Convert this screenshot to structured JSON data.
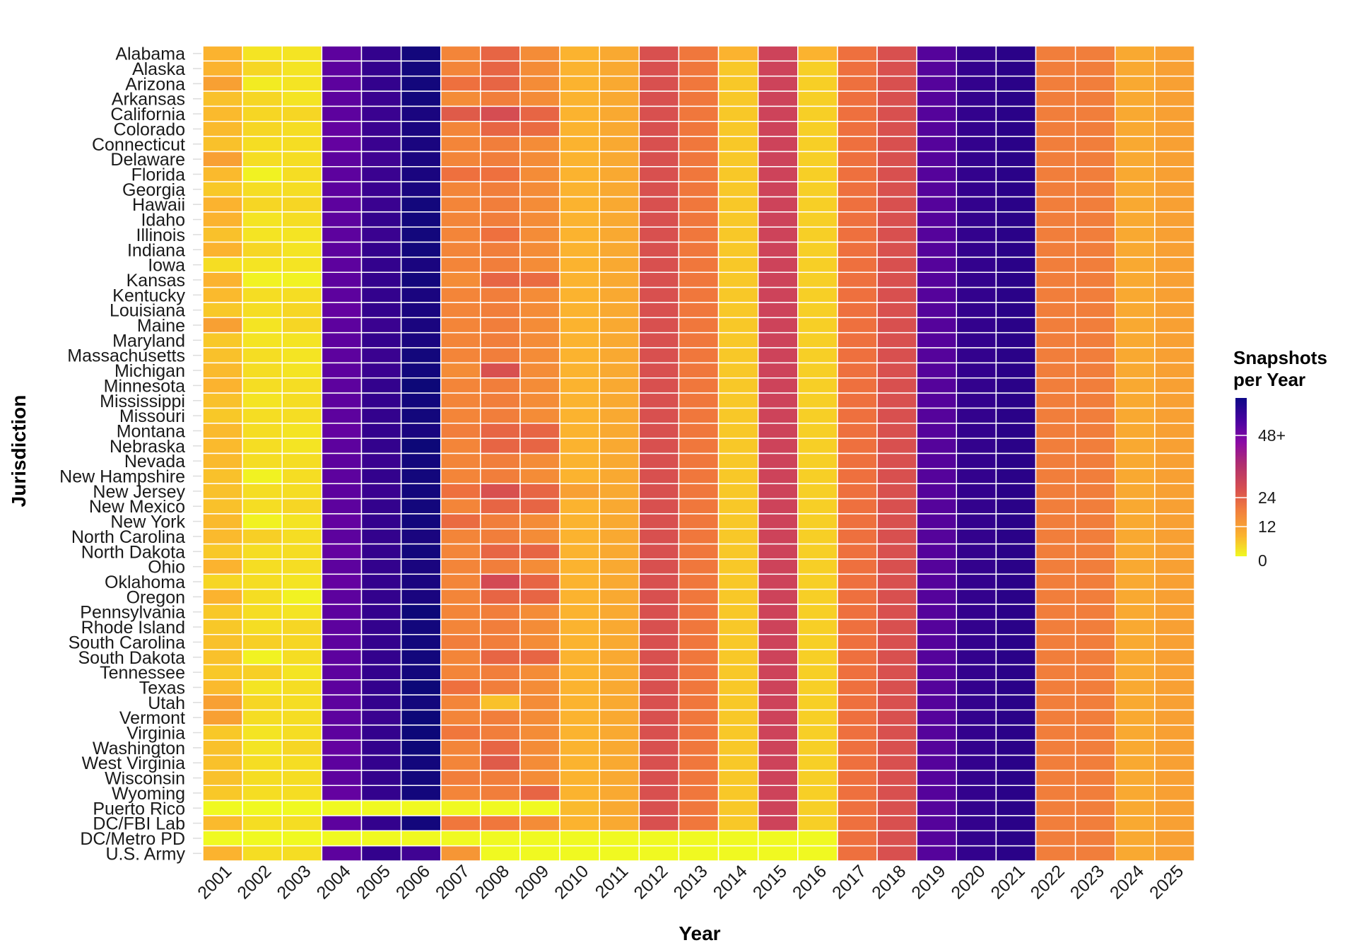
{
  "chart_data": {
    "type": "heatmap",
    "title": "",
    "xlabel": "Year",
    "ylabel": "Jurisdiction",
    "x": [
      "2001",
      "2002",
      "2003",
      "2004",
      "2005",
      "2006",
      "2007",
      "2008",
      "2009",
      "2010",
      "2011",
      "2012",
      "2013",
      "2014",
      "2015",
      "2016",
      "2017",
      "2018",
      "2019",
      "2020",
      "2021",
      "2022",
      "2023",
      "2024",
      "2025"
    ],
    "y": [
      "Alabama",
      "Alaska",
      "Arizona",
      "Arkansas",
      "California",
      "Colorado",
      "Connecticut",
      "Delaware",
      "Florida",
      "Georgia",
      "Hawaii",
      "Idaho",
      "Illinois",
      "Indiana",
      "Iowa",
      "Kansas",
      "Kentucky",
      "Louisiana",
      "Maine",
      "Maryland",
      "Massachusetts",
      "Michigan",
      "Minnesota",
      "Mississippi",
      "Missouri",
      "Montana",
      "Nebraska",
      "Nevada",
      "New Hampshire",
      "New Jersey",
      "New Mexico",
      "New York",
      "North Carolina",
      "North Dakota",
      "Ohio",
      "Oklahoma",
      "Oregon",
      "Pennsylvania",
      "Rhode Island",
      "South Carolina",
      "South Dakota",
      "Tennessee",
      "Texas",
      "Utah",
      "Vermont",
      "Virginia",
      "Washington",
      "West Virginia",
      "Wisconsin",
      "Wyoming",
      "Puerto Rico",
      "DC/FBI Lab",
      "DC/Metro PD",
      "U.S. Army"
    ],
    "base_profile": [
      9,
      3,
      3,
      50,
      62,
      72,
      15,
      18,
      14,
      10,
      11,
      24,
      16,
      10,
      28,
      6,
      18,
      24,
      52,
      62,
      65,
      16,
      16,
      11,
      12
    ],
    "values": [
      [
        10,
        3,
        3,
        50,
        62,
        72,
        15,
        20,
        14,
        10,
        11,
        24,
        17,
        10,
        28,
        10,
        18,
        24,
        52,
        62,
        65,
        16,
        16,
        11,
        12
      ],
      [
        10,
        5,
        3,
        50,
        62,
        72,
        15,
        20,
        14,
        10,
        11,
        24,
        17,
        7,
        28,
        6,
        18,
        24,
        52,
        62,
        65,
        16,
        16,
        11,
        12
      ],
      [
        12,
        2,
        3,
        50,
        62,
        72,
        18,
        20,
        14,
        10,
        11,
        24,
        17,
        7,
        28,
        6,
        18,
        24,
        52,
        62,
        65,
        16,
        16,
        11,
        12
      ],
      [
        8,
        5,
        3,
        50,
        60,
        72,
        14,
        16,
        14,
        10,
        11,
        24,
        17,
        7,
        28,
        6,
        18,
        24,
        52,
        62,
        65,
        16,
        16,
        11,
        12
      ],
      [
        9,
        5,
        5,
        50,
        60,
        70,
        22,
        25,
        20,
        10,
        11,
        24,
        17,
        7,
        28,
        6,
        18,
        24,
        52,
        62,
        65,
        16,
        16,
        11,
        12
      ],
      [
        9,
        5,
        4,
        48,
        60,
        70,
        15,
        20,
        19,
        10,
        11,
        24,
        17,
        7,
        28,
        6,
        18,
        24,
        52,
        62,
        65,
        16,
        16,
        11,
        12
      ],
      [
        8,
        4,
        4,
        48,
        60,
        70,
        15,
        16,
        14,
        10,
        11,
        24,
        17,
        7,
        28,
        6,
        18,
        24,
        52,
        62,
        65,
        16,
        16,
        11,
        12
      ],
      [
        12,
        4,
        4,
        50,
        58,
        70,
        15,
        16,
        14,
        10,
        11,
        24,
        17,
        7,
        28,
        6,
        18,
        24,
        52,
        62,
        65,
        16,
        16,
        11,
        12
      ],
      [
        9,
        1,
        4,
        50,
        60,
        70,
        18,
        18,
        14,
        10,
        11,
        24,
        17,
        7,
        28,
        6,
        18,
        24,
        52,
        62,
        65,
        16,
        16,
        11,
        12
      ],
      [
        7,
        4,
        4,
        50,
        60,
        70,
        15,
        16,
        14,
        10,
        11,
        24,
        17,
        7,
        28,
        6,
        18,
        24,
        52,
        62,
        65,
        16,
        16,
        11,
        12
      ],
      [
        10,
        5,
        5,
        50,
        60,
        72,
        15,
        16,
        14,
        10,
        11,
        24,
        17,
        7,
        28,
        6,
        18,
        24,
        52,
        62,
        65,
        16,
        16,
        11,
        12
      ],
      [
        10,
        3,
        4,
        50,
        62,
        72,
        15,
        16,
        14,
        10,
        11,
        24,
        17,
        7,
        28,
        6,
        18,
        24,
        52,
        62,
        65,
        16,
        16,
        11,
        12
      ],
      [
        8,
        3,
        3,
        50,
        60,
        72,
        15,
        18,
        14,
        10,
        11,
        24,
        17,
        7,
        28,
        6,
        18,
        24,
        52,
        62,
        65,
        16,
        16,
        11,
        12
      ],
      [
        10,
        5,
        3,
        50,
        62,
        72,
        15,
        16,
        14,
        10,
        11,
        24,
        17,
        7,
        28,
        6,
        18,
        24,
        52,
        62,
        65,
        16,
        16,
        11,
        12
      ],
      [
        4,
        3,
        3,
        50,
        62,
        70,
        15,
        16,
        14,
        10,
        11,
        24,
        17,
        7,
        28,
        6,
        18,
        24,
        52,
        62,
        65,
        16,
        16,
        11,
        12
      ],
      [
        10,
        1,
        1,
        50,
        62,
        72,
        14,
        20,
        19,
        10,
        11,
        24,
        17,
        7,
        28,
        6,
        18,
        24,
        52,
        62,
        65,
        16,
        16,
        11,
        12
      ],
      [
        9,
        4,
        4,
        50,
        62,
        70,
        15,
        16,
        14,
        10,
        11,
        24,
        17,
        7,
        28,
        6,
        18,
        24,
        52,
        62,
        65,
        16,
        16,
        11,
        12
      ],
      [
        7,
        4,
        5,
        48,
        62,
        70,
        15,
        16,
        14,
        10,
        11,
        24,
        17,
        7,
        28,
        6,
        18,
        24,
        52,
        62,
        65,
        16,
        16,
        11,
        12
      ],
      [
        12,
        3,
        5,
        50,
        60,
        70,
        15,
        16,
        14,
        10,
        11,
        24,
        17,
        7,
        28,
        6,
        18,
        24,
        52,
        62,
        65,
        16,
        16,
        11,
        12
      ],
      [
        7,
        3,
        3,
        50,
        62,
        70,
        15,
        16,
        14,
        10,
        11,
        24,
        17,
        7,
        28,
        6,
        18,
        24,
        52,
        62,
        65,
        16,
        16,
        11,
        12
      ],
      [
        8,
        4,
        3,
        50,
        60,
        72,
        15,
        16,
        14,
        10,
        11,
        24,
        17,
        7,
        28,
        6,
        18,
        24,
        52,
        62,
        65,
        16,
        16,
        11,
        12
      ],
      [
        9,
        4,
        3,
        50,
        60,
        72,
        14,
        24,
        14,
        10,
        11,
        24,
        17,
        7,
        28,
        6,
        18,
        24,
        52,
        62,
        65,
        16,
        16,
        11,
        12
      ],
      [
        10,
        4,
        4,
        50,
        62,
        74,
        15,
        16,
        14,
        10,
        11,
        24,
        17,
        7,
        28,
        6,
        18,
        24,
        52,
        62,
        65,
        16,
        16,
        11,
        12
      ],
      [
        8,
        3,
        4,
        50,
        62,
        72,
        15,
        16,
        14,
        10,
        11,
        24,
        17,
        7,
        28,
        6,
        18,
        24,
        52,
        62,
        65,
        16,
        16,
        11,
        12
      ],
      [
        7,
        4,
        4,
        50,
        62,
        72,
        15,
        16,
        14,
        10,
        11,
        24,
        17,
        7,
        28,
        6,
        18,
        24,
        52,
        62,
        65,
        16,
        16,
        11,
        12
      ],
      [
        9,
        4,
        3,
        48,
        62,
        70,
        16,
        20,
        20,
        10,
        11,
        24,
        17,
        7,
        28,
        6,
        18,
        24,
        52,
        62,
        65,
        16,
        16,
        11,
        12
      ],
      [
        9,
        4,
        3,
        50,
        62,
        74,
        15,
        20,
        20,
        10,
        11,
        24,
        17,
        7,
        28,
        6,
        18,
        24,
        52,
        62,
        65,
        16,
        16,
        11,
        12
      ],
      [
        9,
        4,
        4,
        50,
        60,
        72,
        15,
        16,
        14,
        10,
        11,
        24,
        17,
        7,
        28,
        6,
        18,
        24,
        52,
        62,
        65,
        16,
        16,
        11,
        12
      ],
      [
        8,
        1,
        4,
        50,
        62,
        72,
        15,
        16,
        14,
        10,
        11,
        24,
        17,
        7,
        28,
        6,
        18,
        24,
        52,
        62,
        65,
        16,
        16,
        11,
        12
      ],
      [
        8,
        4,
        4,
        50,
        60,
        72,
        18,
        24,
        20,
        12,
        11,
        24,
        17,
        7,
        28,
        6,
        18,
        24,
        52,
        62,
        65,
        16,
        16,
        11,
        12
      ],
      [
        8,
        4,
        5,
        50,
        62,
        72,
        15,
        20,
        20,
        10,
        11,
        24,
        17,
        7,
        28,
        6,
        18,
        24,
        52,
        62,
        65,
        16,
        16,
        11,
        12
      ],
      [
        9,
        1,
        3,
        48,
        62,
        72,
        19,
        16,
        14,
        10,
        11,
        24,
        17,
        7,
        28,
        6,
        18,
        24,
        52,
        62,
        65,
        16,
        16,
        11,
        12
      ],
      [
        9,
        6,
        4,
        50,
        62,
        70,
        15,
        16,
        14,
        10,
        11,
        24,
        17,
        7,
        28,
        6,
        18,
        24,
        52,
        62,
        65,
        16,
        16,
        11,
        12
      ],
      [
        7,
        4,
        4,
        48,
        62,
        72,
        15,
        20,
        20,
        10,
        11,
        24,
        17,
        7,
        28,
        6,
        18,
        24,
        52,
        62,
        65,
        16,
        16,
        11,
        12
      ],
      [
        10,
        4,
        4,
        50,
        62,
        70,
        15,
        16,
        14,
        10,
        11,
        24,
        17,
        7,
        28,
        6,
        18,
        24,
        52,
        62,
        65,
        16,
        16,
        11,
        12
      ],
      [
        5,
        4,
        3,
        48,
        62,
        70,
        15,
        26,
        20,
        10,
        11,
        24,
        17,
        7,
        28,
        6,
        18,
        24,
        52,
        62,
        65,
        16,
        16,
        11,
        12
      ],
      [
        10,
        4,
        1,
        50,
        62,
        70,
        15,
        20,
        20,
        10,
        11,
        24,
        17,
        7,
        28,
        6,
        18,
        24,
        52,
        62,
        65,
        16,
        16,
        11,
        12
      ],
      [
        7,
        4,
        3,
        50,
        62,
        74,
        15,
        16,
        14,
        10,
        11,
        24,
        17,
        7,
        28,
        6,
        18,
        24,
        52,
        62,
        65,
        16,
        16,
        11,
        12
      ],
      [
        7,
        4,
        5,
        50,
        62,
        72,
        15,
        16,
        14,
        10,
        11,
        24,
        17,
        7,
        28,
        6,
        18,
        24,
        52,
        62,
        65,
        16,
        16,
        11,
        12
      ],
      [
        8,
        6,
        5,
        50,
        62,
        72,
        16,
        16,
        14,
        10,
        11,
        24,
        17,
        7,
        28,
        6,
        18,
        24,
        52,
        62,
        65,
        16,
        16,
        11,
        12
      ],
      [
        8,
        1,
        4,
        50,
        62,
        72,
        15,
        20,
        20,
        10,
        11,
        24,
        17,
        7,
        28,
        6,
        18,
        24,
        52,
        62,
        65,
        16,
        16,
        11,
        12
      ],
      [
        7,
        6,
        3,
        50,
        62,
        72,
        15,
        16,
        14,
        10,
        11,
        24,
        17,
        7,
        28,
        6,
        18,
        24,
        52,
        62,
        65,
        16,
        16,
        11,
        12
      ],
      [
        9,
        3,
        4,
        50,
        62,
        74,
        18,
        16,
        14,
        10,
        11,
        24,
        17,
        7,
        28,
        6,
        18,
        24,
        52,
        62,
        65,
        16,
        16,
        11,
        12
      ],
      [
        12,
        5,
        4,
        50,
        62,
        72,
        15,
        8,
        14,
        10,
        11,
        24,
        17,
        7,
        28,
        6,
        18,
        24,
        52,
        62,
        65,
        16,
        16,
        11,
        12
      ],
      [
        12,
        4,
        4,
        50,
        60,
        74,
        15,
        16,
        14,
        10,
        11,
        24,
        17,
        7,
        28,
        6,
        18,
        24,
        52,
        62,
        65,
        16,
        16,
        11,
        12
      ],
      [
        7,
        3,
        4,
        50,
        62,
        74,
        17,
        16,
        14,
        10,
        11,
        24,
        17,
        7,
        28,
        6,
        18,
        24,
        52,
        62,
        65,
        16,
        16,
        11,
        12
      ],
      [
        8,
        3,
        5,
        48,
        62,
        74,
        15,
        20,
        14,
        10,
        11,
        24,
        17,
        7,
        28,
        6,
        18,
        24,
        52,
        62,
        65,
        16,
        16,
        11,
        12
      ],
      [
        8,
        4,
        4,
        50,
        62,
        72,
        15,
        22,
        14,
        10,
        11,
        24,
        17,
        7,
        28,
        6,
        18,
        24,
        52,
        62,
        65,
        16,
        16,
        11,
        12
      ],
      [
        8,
        4,
        4,
        50,
        62,
        72,
        16,
        16,
        14,
        10,
        11,
        24,
        17,
        7,
        28,
        6,
        18,
        24,
        52,
        62,
        65,
        16,
        16,
        11,
        12
      ],
      [
        7,
        4,
        4,
        48,
        62,
        72,
        15,
        16,
        20,
        10,
        11,
        24,
        17,
        7,
        28,
        6,
        18,
        24,
        52,
        62,
        65,
        16,
        16,
        11,
        12
      ],
      [
        0,
        0,
        0,
        0,
        0,
        0,
        0,
        0,
        0,
        9,
        11,
        24,
        17,
        7,
        28,
        6,
        18,
        24,
        52,
        62,
        65,
        16,
        16,
        11,
        12
      ],
      [
        9,
        4,
        4,
        50,
        62,
        72,
        17,
        17,
        14,
        10,
        11,
        24,
        17,
        7,
        28,
        6,
        18,
        24,
        52,
        62,
        65,
        16,
        16,
        11,
        12
      ],
      [
        0,
        0,
        0,
        0,
        0,
        0,
        0,
        0,
        0,
        0,
        0,
        0,
        0,
        0,
        0,
        0,
        18,
        24,
        52,
        62,
        65,
        16,
        16,
        11,
        12
      ],
      [
        10,
        4,
        4,
        50,
        62,
        58,
        13,
        0,
        0,
        0,
        0,
        0,
        0,
        0,
        0,
        0,
        18,
        24,
        52,
        62,
        65,
        16,
        16,
        11,
        12
      ]
    ],
    "colorbar": {
      "title": "Snapshots per Year",
      "ticks": [
        0,
        12,
        24,
        48
      ],
      "tick_labels": [
        "0",
        "12",
        "24",
        "48+"
      ],
      "range": [
        0,
        72
      ],
      "colormap": "plasma (reversed)"
    },
    "legend_placement": "right",
    "grid": false
  }
}
